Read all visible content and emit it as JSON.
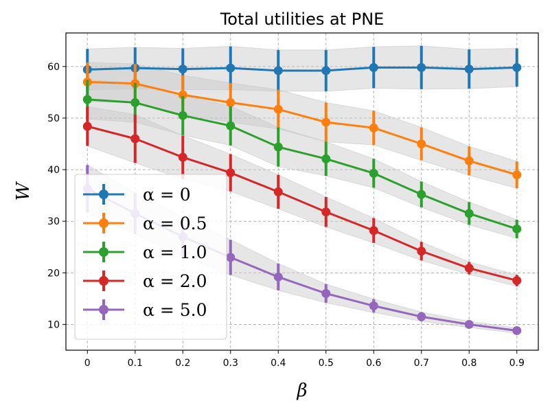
{
  "chart_data": {
    "type": "line",
    "title": "Total utilities at PNE",
    "xlabel": "β",
    "ylabel": "W",
    "x": [
      0,
      0.1,
      0.2,
      0.3,
      0.4,
      0.5,
      0.6,
      0.7,
      0.8,
      0.9
    ],
    "x_tick_labels": [
      "0",
      "0.1",
      "0.2",
      "0.3",
      "0.4",
      "0.5",
      "0.6",
      "0.7",
      "0.8",
      "0.9"
    ],
    "y_ticks": [
      10,
      20,
      30,
      40,
      50,
      60
    ],
    "y_tick_labels": [
      "10",
      "20",
      "30",
      "40",
      "50",
      "60"
    ],
    "xlim": [
      -0.045,
      0.945
    ],
    "ylim": [
      5.0,
      66.5
    ],
    "grid": true,
    "legend_position": "lower-left",
    "band_color": "#c8c8c8",
    "series": [
      {
        "name": "α = 0",
        "color": "#1f77b4",
        "values": [
          59.4,
          59.7,
          59.5,
          59.7,
          59.2,
          59.2,
          59.8,
          59.8,
          59.5,
          59.8
        ],
        "errors": [
          4.0,
          4.0,
          4.0,
          4.2,
          4.0,
          4.0,
          4.0,
          4.2,
          3.8,
          3.7
        ]
      },
      {
        "name": "α = 0.5",
        "color": "#ff7f0e",
        "values": [
          57.0,
          56.7,
          54.5,
          53.0,
          51.7,
          49.2,
          48.1,
          45.0,
          41.7,
          39.0
        ],
        "errors": [
          3.8,
          3.8,
          3.8,
          3.8,
          3.8,
          3.8,
          3.3,
          3.2,
          2.8,
          2.6
        ]
      },
      {
        "name": "α = 1.0",
        "color": "#2ca02c",
        "values": [
          53.6,
          53.0,
          50.5,
          48.5,
          44.4,
          42.1,
          39.3,
          35.2,
          31.5,
          28.5
        ],
        "errors": [
          3.8,
          3.8,
          3.8,
          3.8,
          3.8,
          3.3,
          2.8,
          2.5,
          2.2,
          1.8
        ]
      },
      {
        "name": "α = 2.0",
        "color": "#d62728",
        "values": [
          48.4,
          46.0,
          42.4,
          39.4,
          35.7,
          31.8,
          28.2,
          24.2,
          20.9,
          18.5
        ],
        "errors": [
          3.8,
          4.7,
          4.2,
          3.6,
          3.3,
          2.9,
          2.4,
          1.8,
          1.2,
          1.1
        ]
      },
      {
        "name": "α = 5.0",
        "color": "#9467bd",
        "values": [
          36.3,
          31.5,
          27.0,
          23.0,
          19.2,
          16.0,
          13.6,
          11.5,
          10.0,
          8.8
        ],
        "errors": [
          4.6,
          4.0,
          3.8,
          3.4,
          2.6,
          1.8,
          1.3,
          0.9,
          0.6,
          0.5
        ]
      }
    ]
  }
}
